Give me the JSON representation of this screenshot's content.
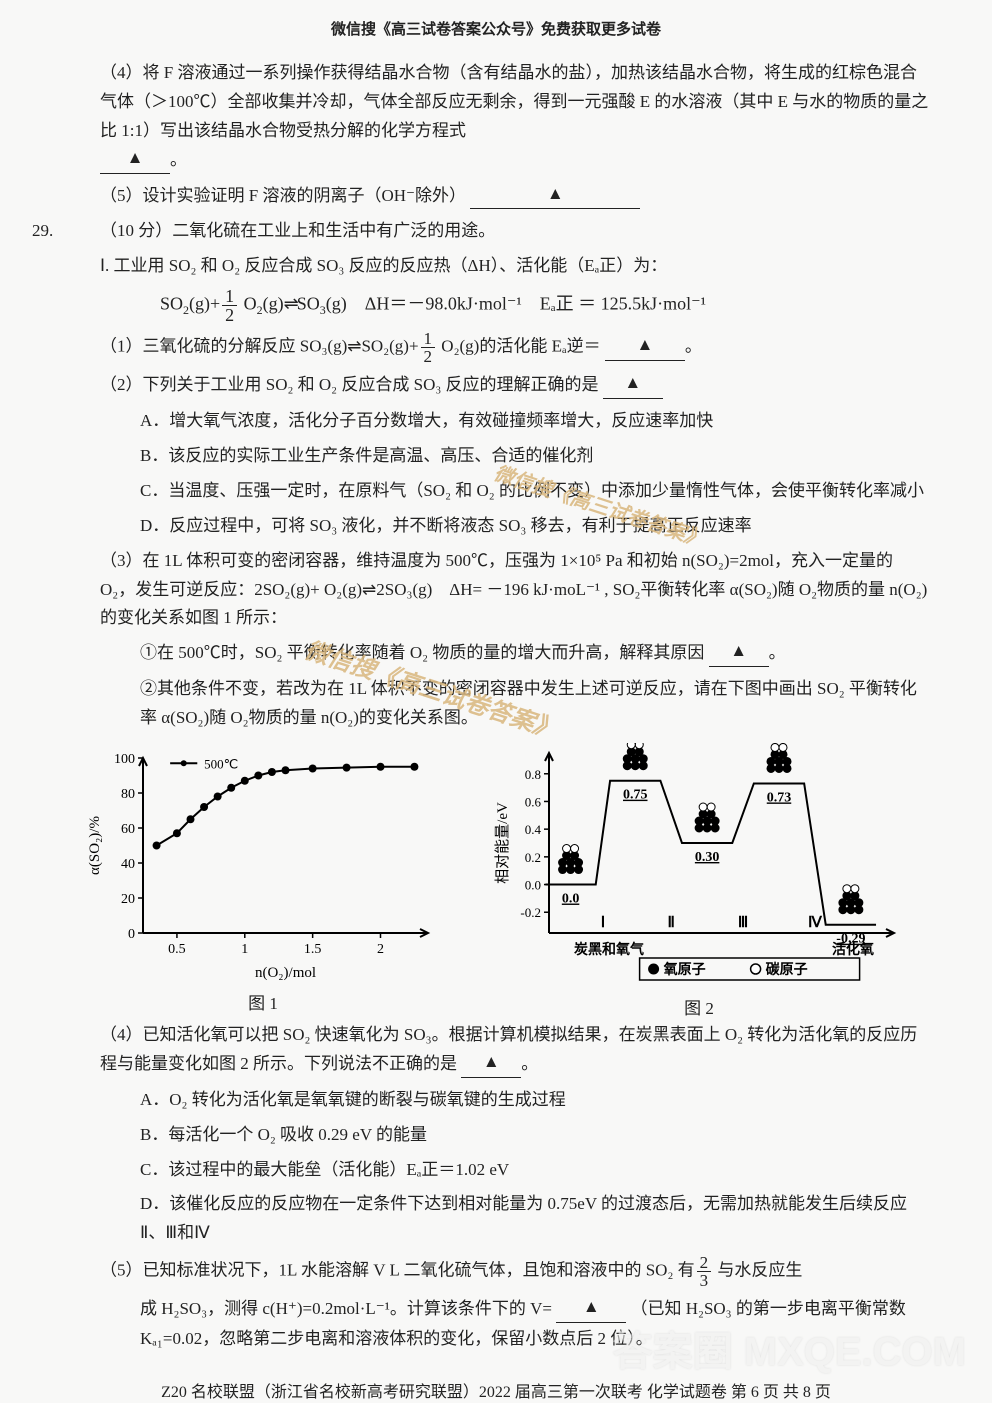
{
  "banner": "微信搜《高三试卷答案公众号》免费获取更多试卷",
  "q28": {
    "p4": "（4）将 F 溶液通过一系列操作获得结晶水合物（含有结晶水的盐），加热该结晶水合物，将生成的红棕色混合气体（＞100℃）全部收集并冷却，气体全部反应无剩余，得到一元强酸 E 的水溶液（其中 E 与水的物质的量之比 1:1）写出该结晶水合物受热分解的化学方程式",
    "p5": "（5）设计实验证明 F 溶液的阴离子（OH⁻除外）",
    "triangle": "▲"
  },
  "q29": {
    "num": "29.",
    "intro": "（10 分）二氧化硫在工业上和生活中有广泛的用途。",
    "sI_a": "Ⅰ. 工业用 SO₂ 和 O₂ 反应合成 SO₃ 反应的反应热（ΔH）、活化能（Eₐ正）为：",
    "eq_dH": "ΔH＝－98.0kJ·mol⁻¹",
    "eq_Ea": "Eₐ正 ＝ 125.5kJ·mol⁻¹",
    "p1": "（1）三氧化硫的分解反应 SO₃(g)⇌SO₂(g)+",
    "p1b": "O₂(g)的活化能 Eₐ逆＝",
    "p2": "（2）下列关于工业用 SO₂ 和 O₂ 反应合成 SO₃ 反应的理解正确的是",
    "p2A": "A．增大氧气浓度，活化分子百分数增大，有效碰撞频率增大，反应速率加快",
    "p2B": "B．该反应的实际工业生产条件是高温、高压、合适的催化剂",
    "p2C": "C．当温度、压强一定时，在原料气（SO₂ 和 O₂ 的比例不变）中添加少量惰性气体，会使平衡转化率减小",
    "p2D": "D．反应过程中，可将 SO₃ 液化，并不断将液态 SO₃ 移去，有利于提高正反应速率",
    "p3a": "（3）在 1L 体积可变的密闭容器，维持温度为 500℃，压强为 1×10⁵ Pa 和初始 n(SO₂)=2mol，充入一定量的 O₂，发生可逆反应：2SO₂(g)+ O₂(g)⇌2SO₃(g)　ΔH= －196 kJ·moL⁻¹ , SO₂平衡转化率 α(SO₂)随 O₂物质的量 n(O₂)的变化关系如图 1 所示：",
    "p3b": "①在 500℃时，SO₂ 平衡转化率随着 O₂ 物质的量的增大而升高，解释其原因",
    "p3c": "②其他条件不变，若改为在 1L 体积不变的密闭容器中发生上述可逆反应，请在下图中画出 SO₂ 平衡转化率 α(SO₂)随 O₂物质的量 n(O₂)的变化关系图。",
    "p4": "（4）已知活化氧可以把 SO₂ 快速氧化为 SO₃。根据计算机模拟结果，在炭黑表面上 O₂ 转化为活化氧的反应历程与能量变化如图 2 所示。下列说法不正确的是",
    "p4A": "A．O₂ 转化为活化氧是氧氧键的断裂与碳氧键的生成过程",
    "p4B": "B．每活化一个 O₂ 吸收 0.29 eV 的能量",
    "p4C": "C．该过程中的最大能垒（活化能）Eₐ正＝1.02 eV",
    "p4D": "D．该催化反应的反应物在一定条件下达到相对能量为 0.75eV 的过渡态后，无需加热就能发生后续反应Ⅱ、Ⅲ和Ⅳ",
    "p5a": "（5）已知标准状况下，1L 水能溶解 V L 二氧化硫气体，且饱和溶液中的 SO₂ 有",
    "p5b": "与水反应生",
    "p5c": "成 H₂SO₃，测得 c(H⁺)=0.2mol·L⁻¹。计算该条件下的 V=",
    "p5d": "（已知 H₂SO₃ 的第一步电离平衡常数 Kₐ₁=0.02，忽略第二步电离和溶液体积的变化，保留小数点后 2 位）。"
  },
  "fig1": {
    "caption": "图 1",
    "legend": "500℃",
    "xlabel": "n(O₂)/mol",
    "ylabel": "α(SO₂)/%",
    "xticks": [
      "0.5",
      "1",
      "1.5",
      "2"
    ],
    "yticks": [
      "0",
      "20",
      "40",
      "60",
      "80",
      "100"
    ],
    "points": [
      [
        0.35,
        50
      ],
      [
        0.5,
        57
      ],
      [
        0.6,
        65
      ],
      [
        0.7,
        72
      ],
      [
        0.8,
        78
      ],
      [
        0.9,
        83
      ],
      [
        1.0,
        87
      ],
      [
        1.1,
        90
      ],
      [
        1.2,
        92
      ],
      [
        1.3,
        93
      ],
      [
        1.5,
        94
      ],
      [
        1.75,
        94.5
      ],
      [
        2.0,
        95
      ],
      [
        2.25,
        95
      ]
    ],
    "line_color": "#000000",
    "marker_color": "#000000",
    "marker_size": 4,
    "background": "#f8f8f7"
  },
  "fig2": {
    "caption": "图 2",
    "xlabel_left": "炭黑和氧气",
    "xlabel_right": "活化氧",
    "ylabel": "相对能量/eV",
    "yticks": [
      "-0.2",
      "0.0",
      "0.2",
      "0.4",
      "0.6",
      "0.8"
    ],
    "legend_items": [
      "氧原子",
      "碳原子"
    ],
    "legend_markers": [
      "filled",
      "open"
    ],
    "stages": [
      "Ⅰ",
      "Ⅱ",
      "Ⅲ",
      "Ⅳ"
    ],
    "energies": {
      "start": 0.0,
      "ts1": 0.75,
      "int1": 0.3,
      "ts2": 0.73,
      "end": -0.29
    },
    "line_color": "#000000",
    "background": "#f8f8f7"
  },
  "footer": "Z20 名校联盟（浙江省名校新高考研究联盟）2022 届高三第一次联考  化学试题卷   第 6 页  共 8 页",
  "watermark1": "微信搜《高三试卷答案》",
  "watermark2": "答案圈\nMXQE.COM"
}
